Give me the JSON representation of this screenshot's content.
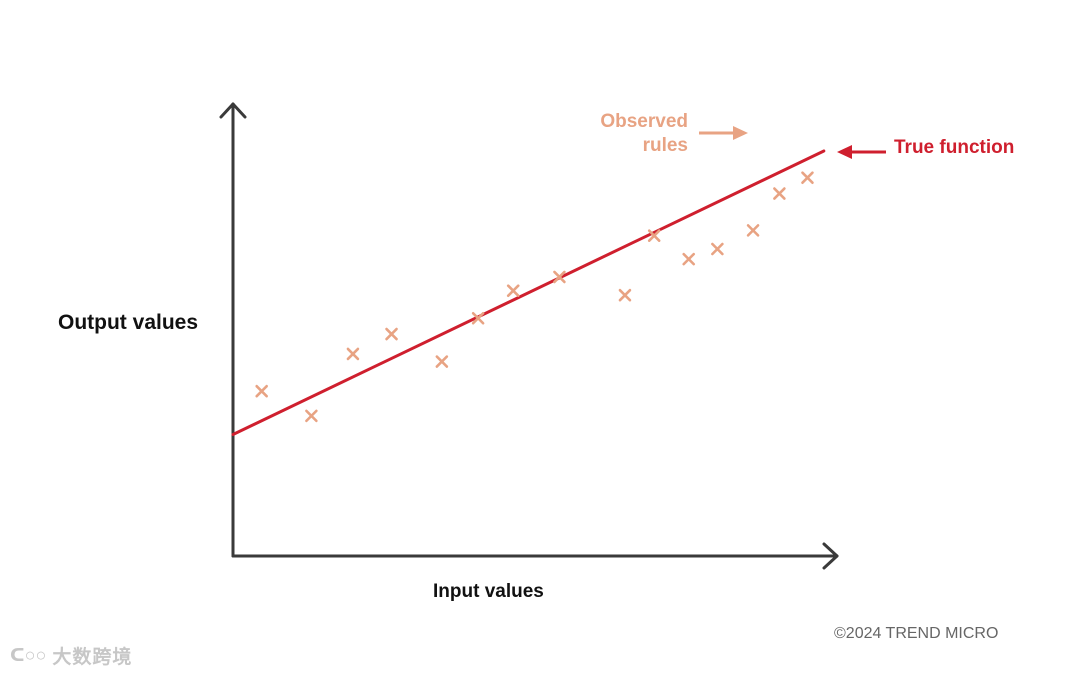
{
  "colors": {
    "axis": "#3a3a3a",
    "observed": "#e8a383",
    "true_function": "#cf1f2e",
    "label_text": "#111111",
    "copyright": "#666666"
  },
  "chart_data": {
    "type": "scatter",
    "title": "",
    "xlabel": "Input values",
    "ylabel": "Output values",
    "xlim": [
      0,
      10
    ],
    "ylim": [
      0,
      10
    ],
    "grid": false,
    "series": [
      {
        "name": "Observed rules",
        "marker": "x",
        "x": [
          0.49,
          1.34,
          2.05,
          2.71,
          3.57,
          4.19,
          4.79,
          5.58,
          6.7,
          7.2,
          7.79,
          8.28,
          8.89,
          9.34,
          9.82
        ],
        "y": [
          4.07,
          3.46,
          4.99,
          5.48,
          4.8,
          5.87,
          6.55,
          6.89,
          6.44,
          7.91,
          7.33,
          7.58,
          8.04,
          8.95,
          9.34
        ]
      },
      {
        "name": "True function",
        "type": "line",
        "x": [
          0,
          10.1
        ],
        "y": [
          3.0,
          10.0
        ]
      }
    ],
    "annotations": [
      {
        "text": "Observed rules",
        "points_to": "Observed rules"
      },
      {
        "text": "True function",
        "points_to": "True function"
      }
    ]
  },
  "labels": {
    "y_axis": "Output values",
    "x_axis": "Input values",
    "observed": "Observed rules",
    "true_function": "True function"
  },
  "footer": {
    "copyright": "©2024 TREND MICRO",
    "watermark": "大数跨境"
  },
  "icons": {
    "watermark_logo": "brand-logo-icon"
  }
}
